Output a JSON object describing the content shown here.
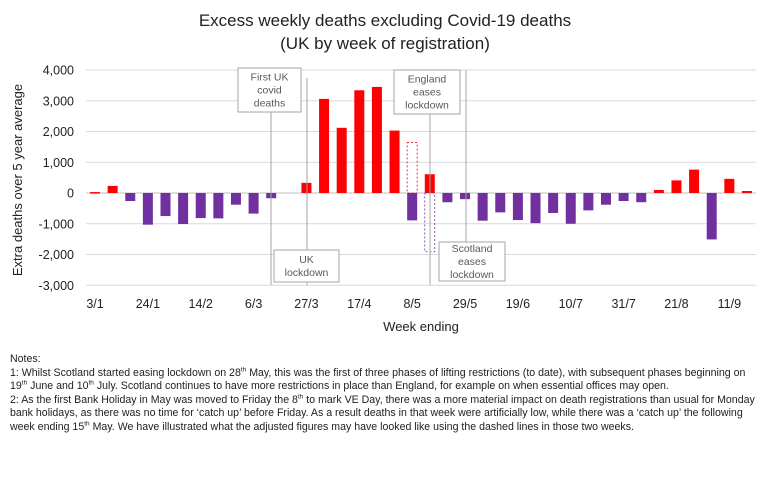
{
  "chart_data": {
    "type": "bar",
    "title": [
      "Excess weekly deaths excluding Covid-19 deaths",
      "(UK by week of registration)"
    ],
    "xlabel": "Week ending",
    "ylabel": "Extra deaths over 5 year average",
    "ylim": [
      -3000,
      4000
    ],
    "yticks": [
      4000,
      3000,
      2000,
      1000,
      0,
      -1000,
      -2000,
      -3000
    ],
    "ytick_labels": [
      "4,000",
      "3,000",
      "2,000",
      "1,000",
      "0",
      "-1,000",
      "-2,000",
      "-3,000"
    ],
    "grid": true,
    "categories": [
      "3/1",
      "10/1",
      "17/1",
      "24/1",
      "31/1",
      "7/2",
      "14/2",
      "21/2",
      "28/2",
      "6/3",
      "13/3",
      "20/3",
      "27/3",
      "3/4",
      "10/4",
      "17/4",
      "24/4",
      "1/5",
      "8/5",
      "15/5",
      "22/5",
      "29/5",
      "5/6",
      "12/6",
      "19/6",
      "26/6",
      "3/7",
      "10/7",
      "17/7",
      "24/7",
      "31/7",
      "7/8",
      "14/8",
      "21/8",
      "28/8",
      "4/9",
      "11/9",
      "18/9"
    ],
    "xtick_labels": [
      "3/1",
      "24/1",
      "14/2",
      "6/3",
      "27/3",
      "17/4",
      "8/5",
      "29/5",
      "19/6",
      "10/7",
      "31/7",
      "21/8",
      "11/9"
    ],
    "values": [
      30,
      230,
      -260,
      -1030,
      -750,
      -1010,
      -815,
      -825,
      -380,
      -670,
      -170,
      0,
      330,
      3060,
      2120,
      3340,
      3450,
      2030,
      -890,
      610,
      -300,
      -200,
      -900,
      -630,
      -880,
      -980,
      -650,
      -1000,
      -565,
      -380,
      -260,
      -300,
      100,
      410,
      760,
      -1510,
      460,
      65
    ],
    "adjusted_dashed": [
      {
        "category": "8/5",
        "value": 1640
      },
      {
        "category": "15/5",
        "value": -1910
      }
    ],
    "colors": {
      "positive": "#ff0000",
      "negative": "#7030a0",
      "grid": "#d9d9d9",
      "annotation": "#a6a6a6"
    },
    "annotations": [
      {
        "text": [
          "First UK",
          "covid",
          "deaths"
        ],
        "category": "13/3",
        "box": "top"
      },
      {
        "text": [
          "UK",
          "lockdown"
        ],
        "category": "27/3",
        "box": "bottom"
      },
      {
        "text": [
          "England",
          "eases",
          "lockdown"
        ],
        "category": "15/5",
        "box": "top"
      },
      {
        "text": [
          "Scotland",
          "eases",
          "lockdown"
        ],
        "category": "29/5",
        "box": "bottom"
      }
    ]
  },
  "notes": {
    "heading": "Notes:",
    "paragraphs": [
      [
        {
          "t": "1: Whilst Scotland started easing lockdown on 28"
        },
        {
          "sup": "th"
        },
        {
          "t": " May, this was the first of three phases of lifting restrictions (to date), with subsequent phases beginning on 19"
        },
        {
          "sup": "th"
        },
        {
          "t": " June and 10"
        },
        {
          "sup": "th"
        },
        {
          "t": " July. Scotland continues to have more restrictions in place than England, for example on when essential offices may open."
        }
      ],
      [
        {
          "t": "2: As the first Bank Holiday in May was moved to Friday the 8"
        },
        {
          "sup": "th"
        },
        {
          "t": " to mark VE Day, there was a more material impact on death registrations than usual for Monday bank holidays, as there was no time for ‘catch up’ before Friday. As a result deaths in that week were artificially low, while there was a ‘catch up’ the following week ending 15"
        },
        {
          "sup": "th"
        },
        {
          "t": " May. We have illustrated what the adjusted figures may have looked like using the dashed lines in those two weeks."
        }
      ]
    ]
  }
}
